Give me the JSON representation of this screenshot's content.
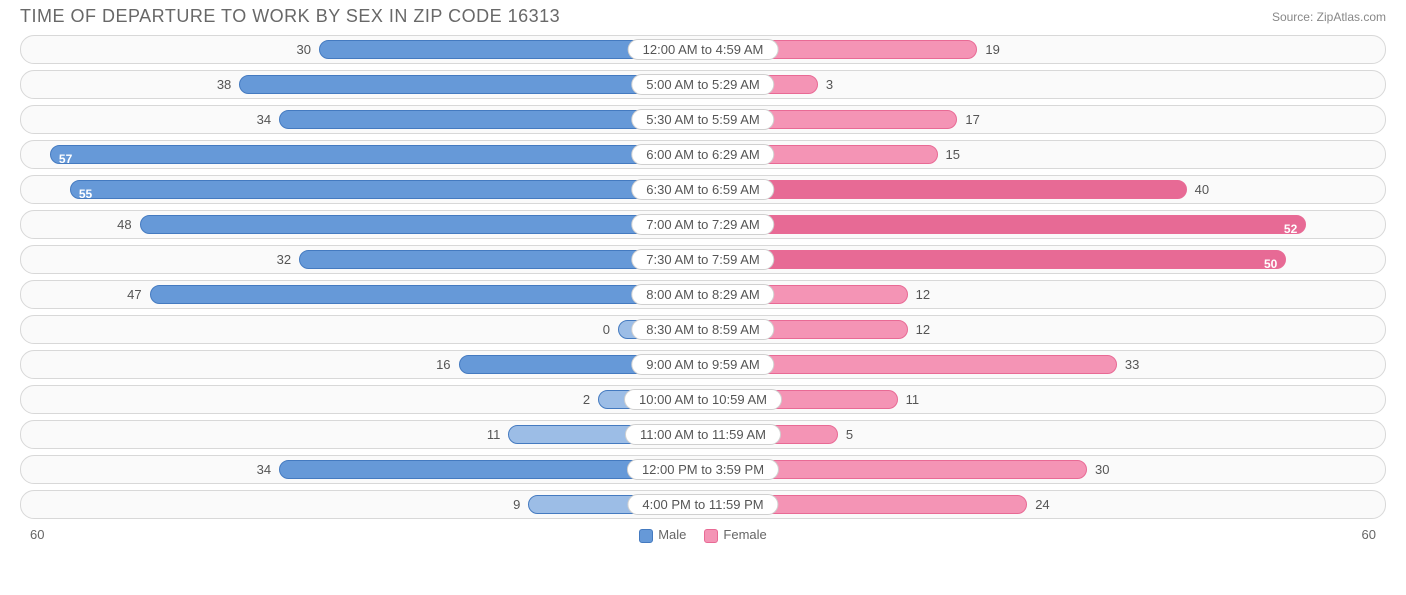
{
  "title": "TIME OF DEPARTURE TO WORK BY SEX IN ZIP CODE 16313",
  "source": "Source: ZipAtlas.com",
  "chart": {
    "type": "tornado-bar",
    "axis_max": 60,
    "axis_label_left": "60",
    "axis_label_right": "60",
    "colors": {
      "male_fill": "#6699d8",
      "male_fill_light": "#9cbde6",
      "male_border": "#447ac0",
      "female_fill": "#f494b5",
      "female_fill_dark": "#e76a95",
      "female_border": "#e86a95",
      "track_bg": "#fafafa",
      "track_border": "#d8d8d8",
      "text": "#555555",
      "title_text": "#686868"
    },
    "legend": {
      "male": "Male",
      "female": "Female"
    },
    "rows": [
      {
        "label": "12:00 AM to 4:59 AM",
        "male": 30,
        "female": 19,
        "m_light": false,
        "f_dark": false
      },
      {
        "label": "5:00 AM to 5:29 AM",
        "male": 38,
        "female": 3,
        "m_light": false,
        "f_dark": false
      },
      {
        "label": "5:30 AM to 5:59 AM",
        "male": 34,
        "female": 17,
        "m_light": false,
        "f_dark": false
      },
      {
        "label": "6:00 AM to 6:29 AM",
        "male": 57,
        "female": 15,
        "m_light": false,
        "f_dark": false
      },
      {
        "label": "6:30 AM to 6:59 AM",
        "male": 55,
        "female": 40,
        "m_light": false,
        "f_dark": true
      },
      {
        "label": "7:00 AM to 7:29 AM",
        "male": 48,
        "female": 52,
        "m_light": false,
        "f_dark": true
      },
      {
        "label": "7:30 AM to 7:59 AM",
        "male": 32,
        "female": 50,
        "m_light": false,
        "f_dark": true
      },
      {
        "label": "8:00 AM to 8:29 AM",
        "male": 47,
        "female": 12,
        "m_light": false,
        "f_dark": false
      },
      {
        "label": "8:30 AM to 8:59 AM",
        "male": 0,
        "female": 12,
        "m_light": true,
        "f_dark": false
      },
      {
        "label": "9:00 AM to 9:59 AM",
        "male": 16,
        "female": 33,
        "m_light": false,
        "f_dark": false
      },
      {
        "label": "10:00 AM to 10:59 AM",
        "male": 2,
        "female": 11,
        "m_light": true,
        "f_dark": false
      },
      {
        "label": "11:00 AM to 11:59 AM",
        "male": 11,
        "female": 5,
        "m_light": true,
        "f_dark": false
      },
      {
        "label": "12:00 PM to 3:59 PM",
        "male": 34,
        "female": 30,
        "m_light": false,
        "f_dark": false
      },
      {
        "label": "4:00 PM to 11:59 PM",
        "male": 9,
        "female": 24,
        "m_light": true,
        "f_dark": false
      }
    ]
  }
}
